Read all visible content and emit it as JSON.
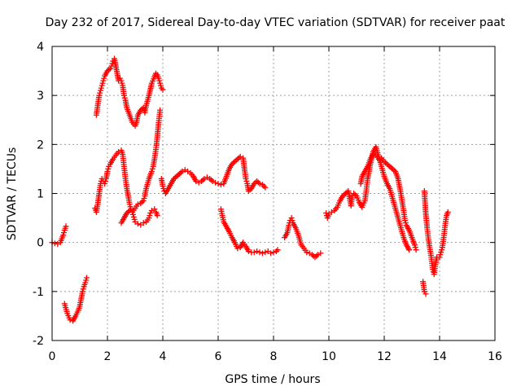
{
  "chart_data": {
    "type": "scatter",
    "title": "Day 232 of 2017, Sidereal Day-to-day VTEC variation (SDTVAR) for receiver paat",
    "xlabel": "GPS time / hours",
    "ylabel": "SDTVAR / TECUs",
    "xlim": [
      0,
      16
    ],
    "ylim": [
      -2,
      4
    ],
    "xticks": [
      "0",
      "2",
      "4",
      "6",
      "8",
      "10",
      "12",
      "14",
      "16"
    ],
    "yticks": [
      "-2",
      "-1",
      "0",
      "1",
      "2",
      "3",
      "4"
    ],
    "grid": true,
    "marker": "plus",
    "color": "#ff0000",
    "series": [
      {
        "points": [
          [
            0.0,
            0.0
          ],
          [
            0.1,
            -0.02
          ],
          [
            0.2,
            -0.03
          ],
          [
            0.3,
            0.0
          ],
          [
            0.4,
            0.15
          ],
          [
            0.45,
            0.25
          ],
          [
            0.5,
            0.33
          ]
        ]
      },
      {
        "points": [
          [
            0.45,
            -1.25
          ],
          [
            0.55,
            -1.45
          ],
          [
            0.65,
            -1.58
          ],
          [
            0.75,
            -1.6
          ],
          [
            0.85,
            -1.5
          ],
          [
            0.95,
            -1.38
          ],
          [
            1.0,
            -1.3
          ],
          [
            1.05,
            -1.15
          ],
          [
            1.1,
            -1.0
          ],
          [
            1.15,
            -0.9
          ],
          [
            1.2,
            -0.82
          ],
          [
            1.25,
            -0.72
          ]
        ]
      },
      {
        "points": [
          [
            1.6,
            2.6
          ],
          [
            1.65,
            2.8
          ],
          [
            1.7,
            3.0
          ],
          [
            1.75,
            3.1
          ],
          [
            1.8,
            3.2
          ],
          [
            1.85,
            3.3
          ],
          [
            1.9,
            3.4
          ],
          [
            2.0,
            3.5
          ],
          [
            2.1,
            3.55
          ],
          [
            2.15,
            3.6
          ],
          [
            2.2,
            3.7
          ],
          [
            2.25,
            3.75
          ],
          [
            2.3,
            3.6
          ],
          [
            2.35,
            3.45
          ],
          [
            2.4,
            3.3
          ],
          [
            2.45,
            3.35
          ],
          [
            2.5,
            3.3
          ],
          [
            2.55,
            3.2
          ],
          [
            2.6,
            3.0
          ],
          [
            2.65,
            2.9
          ],
          [
            2.7,
            2.75
          ],
          [
            2.8,
            2.6
          ],
          [
            2.9,
            2.45
          ],
          [
            3.0,
            2.38
          ],
          [
            3.05,
            2.45
          ],
          [
            3.1,
            2.6
          ],
          [
            3.2,
            2.7
          ],
          [
            3.3,
            2.75
          ],
          [
            3.35,
            2.65
          ],
          [
            3.4,
            2.8
          ],
          [
            3.5,
            3.0
          ],
          [
            3.6,
            3.25
          ],
          [
            3.7,
            3.38
          ],
          [
            3.75,
            3.45
          ],
          [
            3.8,
            3.42
          ],
          [
            3.85,
            3.35
          ],
          [
            3.9,
            3.25
          ],
          [
            3.95,
            3.15
          ],
          [
            4.0,
            3.12
          ]
        ]
      },
      {
        "points": [
          [
            1.55,
            0.7
          ],
          [
            1.6,
            0.62
          ],
          [
            1.65,
            0.78
          ],
          [
            1.7,
            1.0
          ],
          [
            1.75,
            1.2
          ],
          [
            1.8,
            1.3
          ],
          [
            1.85,
            1.25
          ],
          [
            1.9,
            1.2
          ],
          [
            1.95,
            1.3
          ],
          [
            2.0,
            1.45
          ],
          [
            2.05,
            1.55
          ],
          [
            2.1,
            1.6
          ],
          [
            2.2,
            1.7
          ],
          [
            2.3,
            1.78
          ],
          [
            2.4,
            1.85
          ],
          [
            2.5,
            1.88
          ],
          [
            2.55,
            1.8
          ],
          [
            2.6,
            1.55
          ],
          [
            2.65,
            1.3
          ],
          [
            2.7,
            1.1
          ],
          [
            2.75,
            0.95
          ],
          [
            2.8,
            0.78
          ],
          [
            2.85,
            0.68
          ],
          [
            2.9,
            0.62
          ],
          [
            2.95,
            0.52
          ],
          [
            3.0,
            0.42
          ],
          [
            3.1,
            0.38
          ],
          [
            3.2,
            0.36
          ],
          [
            3.3,
            0.4
          ],
          [
            3.4,
            0.42
          ],
          [
            3.5,
            0.5
          ],
          [
            3.55,
            0.6
          ],
          [
            3.6,
            0.65
          ],
          [
            3.7,
            0.68
          ],
          [
            3.75,
            0.62
          ],
          [
            3.8,
            0.55
          ]
        ]
      },
      {
        "points": [
          [
            2.5,
            0.4
          ],
          [
            2.6,
            0.5
          ],
          [
            2.7,
            0.6
          ],
          [
            2.8,
            0.65
          ],
          [
            2.9,
            0.62
          ],
          [
            3.0,
            0.7
          ],
          [
            3.1,
            0.78
          ],
          [
            3.2,
            0.8
          ],
          [
            3.3,
            0.85
          ],
          [
            3.35,
            0.95
          ],
          [
            3.4,
            1.1
          ],
          [
            3.5,
            1.3
          ],
          [
            3.6,
            1.45
          ],
          [
            3.65,
            1.55
          ],
          [
            3.7,
            1.7
          ],
          [
            3.75,
            1.9
          ],
          [
            3.8,
            2.15
          ],
          [
            3.85,
            2.45
          ],
          [
            3.9,
            2.7
          ]
        ]
      },
      {
        "points": [
          [
            3.95,
            1.3
          ],
          [
            4.0,
            1.15
          ],
          [
            4.05,
            1.05
          ],
          [
            4.1,
            1.0
          ],
          [
            4.2,
            1.1
          ],
          [
            4.3,
            1.2
          ],
          [
            4.4,
            1.3
          ],
          [
            4.5,
            1.35
          ],
          [
            4.6,
            1.4
          ],
          [
            4.7,
            1.45
          ],
          [
            4.8,
            1.48
          ],
          [
            4.9,
            1.45
          ],
          [
            5.0,
            1.42
          ],
          [
            5.1,
            1.35
          ],
          [
            5.2,
            1.25
          ],
          [
            5.3,
            1.22
          ],
          [
            5.4,
            1.25
          ],
          [
            5.5,
            1.3
          ],
          [
            5.6,
            1.33
          ],
          [
            5.7,
            1.3
          ],
          [
            5.8,
            1.25
          ],
          [
            5.9,
            1.22
          ],
          [
            6.0,
            1.2
          ],
          [
            6.1,
            1.18
          ],
          [
            6.2,
            1.2
          ],
          [
            6.3,
            1.35
          ],
          [
            6.4,
            1.5
          ],
          [
            6.5,
            1.6
          ],
          [
            6.6,
            1.65
          ],
          [
            6.7,
            1.7
          ],
          [
            6.8,
            1.75
          ],
          [
            6.9,
            1.72
          ],
          [
            6.95,
            1.5
          ],
          [
            7.0,
            1.3
          ],
          [
            7.05,
            1.2
          ],
          [
            7.1,
            1.05
          ],
          [
            7.2,
            1.1
          ],
          [
            7.3,
            1.2
          ],
          [
            7.4,
            1.25
          ],
          [
            7.5,
            1.2
          ],
          [
            7.6,
            1.18
          ],
          [
            7.7,
            1.12
          ]
        ]
      },
      {
        "points": [
          [
            6.1,
            0.68
          ],
          [
            6.15,
            0.55
          ],
          [
            6.2,
            0.42
          ],
          [
            6.3,
            0.32
          ],
          [
            6.4,
            0.22
          ],
          [
            6.5,
            0.1
          ],
          [
            6.6,
            0.0
          ],
          [
            6.7,
            -0.12
          ],
          [
            6.8,
            -0.1
          ],
          [
            6.9,
            0.0
          ],
          [
            7.0,
            -0.08
          ],
          [
            7.1,
            -0.18
          ],
          [
            7.2,
            -0.2
          ],
          [
            7.3,
            -0.2
          ],
          [
            7.4,
            -0.18
          ],
          [
            7.5,
            -0.2
          ],
          [
            7.6,
            -0.22
          ],
          [
            7.7,
            -0.2
          ],
          [
            7.8,
            -0.18
          ],
          [
            7.9,
            -0.22
          ],
          [
            8.0,
            -0.2
          ],
          [
            8.1,
            -0.18
          ],
          [
            8.15,
            -0.15
          ]
        ]
      },
      {
        "points": [
          [
            8.4,
            0.1
          ],
          [
            8.5,
            0.2
          ],
          [
            8.55,
            0.35
          ],
          [
            8.6,
            0.45
          ],
          [
            8.65,
            0.5
          ],
          [
            8.7,
            0.4
          ],
          [
            8.8,
            0.3
          ],
          [
            8.9,
            0.15
          ],
          [
            9.0,
            -0.05
          ],
          [
            9.1,
            -0.12
          ],
          [
            9.2,
            -0.2
          ],
          [
            9.3,
            -0.22
          ],
          [
            9.4,
            -0.25
          ],
          [
            9.5,
            -0.3
          ],
          [
            9.6,
            -0.25
          ],
          [
            9.7,
            -0.22
          ]
        ]
      },
      {
        "points": [
          [
            9.9,
            0.6
          ],
          [
            9.95,
            0.5
          ],
          [
            10.0,
            0.58
          ],
          [
            10.1,
            0.62
          ],
          [
            10.2,
            0.65
          ],
          [
            10.3,
            0.72
          ],
          [
            10.4,
            0.85
          ],
          [
            10.5,
            0.95
          ],
          [
            10.6,
            1.0
          ],
          [
            10.7,
            1.05
          ],
          [
            10.75,
            0.9
          ],
          [
            10.8,
            0.75
          ],
          [
            10.85,
            0.95
          ],
          [
            10.9,
            1.0
          ],
          [
            11.0,
            0.95
          ],
          [
            11.1,
            0.82
          ],
          [
            11.2,
            0.72
          ],
          [
            11.3,
            0.85
          ],
          [
            11.35,
            1.05
          ],
          [
            11.4,
            1.3
          ],
          [
            11.5,
            1.6
          ],
          [
            11.6,
            1.85
          ],
          [
            11.7,
            1.95
          ],
          [
            11.8,
            1.75
          ],
          [
            11.9,
            1.55
          ],
          [
            12.0,
            1.35
          ],
          [
            12.1,
            1.2
          ],
          [
            12.2,
            1.1
          ],
          [
            12.3,
            0.9
          ],
          [
            12.4,
            0.7
          ],
          [
            12.5,
            0.5
          ],
          [
            12.6,
            0.3
          ],
          [
            12.7,
            0.1
          ],
          [
            12.8,
            -0.05
          ],
          [
            12.9,
            -0.15
          ]
        ]
      },
      {
        "points": [
          [
            11.15,
            1.2
          ],
          [
            11.2,
            1.35
          ],
          [
            11.3,
            1.45
          ],
          [
            11.4,
            1.55
          ],
          [
            11.5,
            1.7
          ],
          [
            11.6,
            1.8
          ],
          [
            11.7,
            1.78
          ],
          [
            11.8,
            1.7
          ],
          [
            11.9,
            1.72
          ],
          [
            12.0,
            1.65
          ],
          [
            12.1,
            1.6
          ],
          [
            12.2,
            1.55
          ],
          [
            12.3,
            1.5
          ],
          [
            12.4,
            1.45
          ],
          [
            12.5,
            1.3
          ],
          [
            12.6,
            1.0
          ],
          [
            12.7,
            0.65
          ],
          [
            12.75,
            0.45
          ],
          [
            12.8,
            0.35
          ],
          [
            12.9,
            0.25
          ],
          [
            13.0,
            0.1
          ],
          [
            13.1,
            -0.05
          ],
          [
            13.15,
            -0.15
          ]
        ]
      },
      {
        "points": [
          [
            13.4,
            -0.8
          ],
          [
            13.45,
            -1.0
          ],
          [
            13.5,
            -1.05
          ]
        ]
      },
      {
        "points": [
          [
            13.45,
            1.05
          ],
          [
            13.5,
            0.6
          ],
          [
            13.55,
            0.3
          ],
          [
            13.6,
            0.05
          ],
          [
            13.7,
            -0.3
          ],
          [
            13.75,
            -0.55
          ],
          [
            13.8,
            -0.65
          ],
          [
            13.85,
            -0.45
          ],
          [
            13.9,
            -0.3
          ],
          [
            14.0,
            -0.3
          ],
          [
            14.05,
            -0.2
          ],
          [
            14.1,
            -0.1
          ],
          [
            14.15,
            0.1
          ],
          [
            14.2,
            0.35
          ],
          [
            14.25,
            0.55
          ],
          [
            14.3,
            0.62
          ]
        ]
      }
    ]
  }
}
